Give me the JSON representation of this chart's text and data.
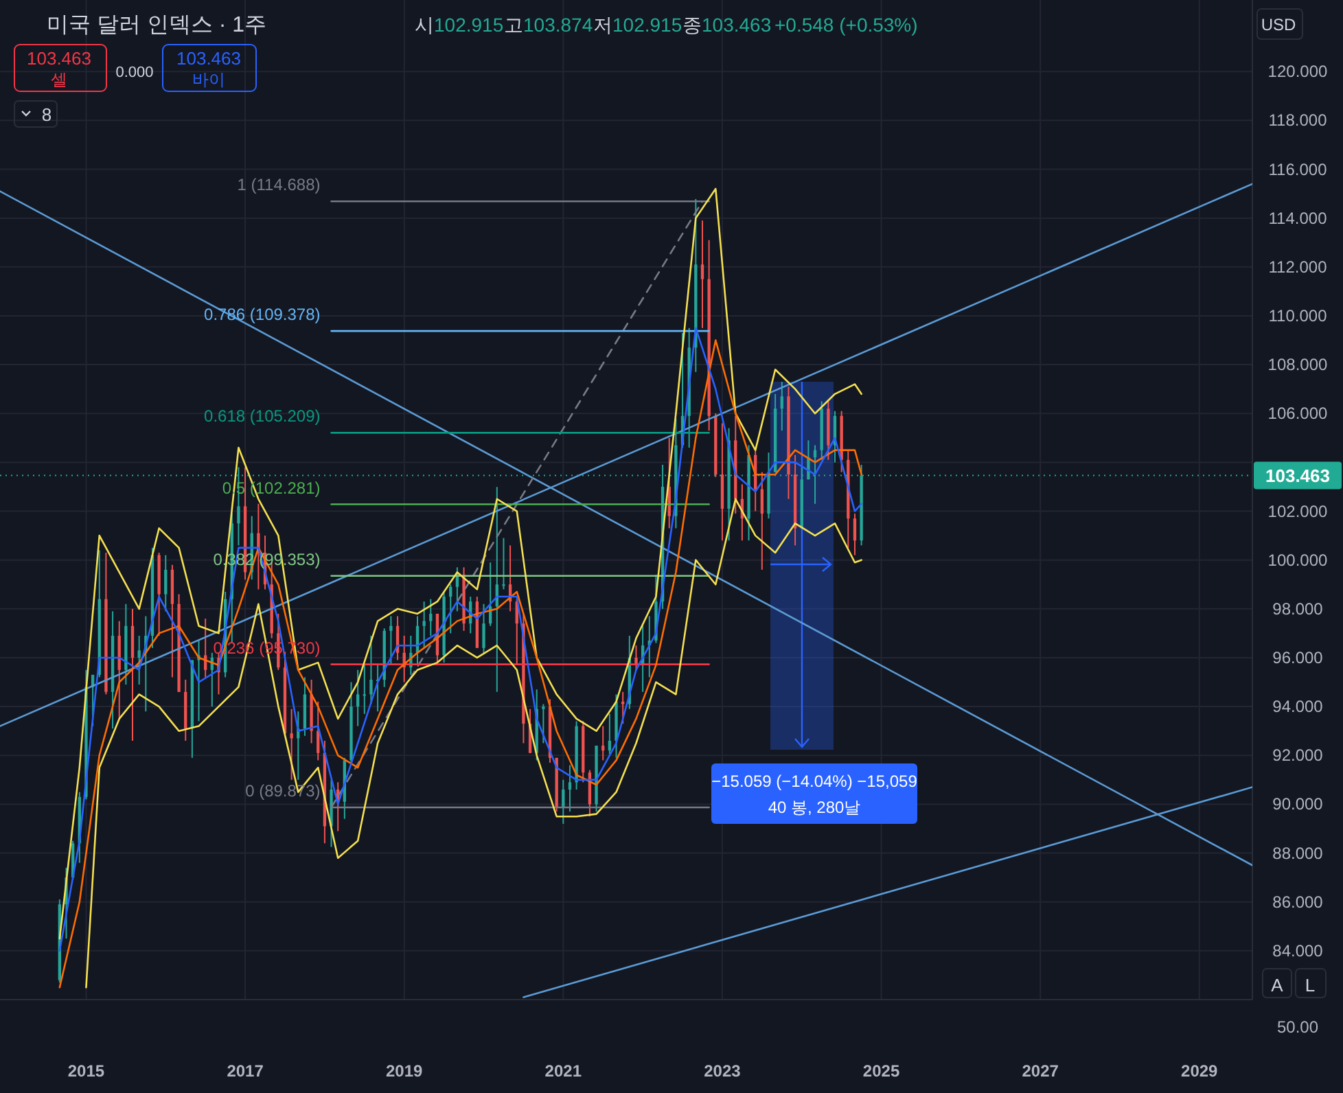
{
  "chart_data": {
    "type": "candlestick",
    "title": "미국 달러 인덱스 · 1주",
    "xlim": [
      "2013-12",
      "2029-09"
    ],
    "ylim": [
      82.0,
      122.93
    ],
    "xticks": [
      "2015",
      "2017",
      "2019",
      "2021",
      "2023",
      "2025",
      "2027",
      "2029"
    ],
    "yticks": [
      {
        "value": 84,
        "label": "84.000"
      },
      {
        "value": 86,
        "label": "86.000"
      },
      {
        "value": 88,
        "label": "88.000"
      },
      {
        "value": 90,
        "label": "90.000"
      },
      {
        "value": 92,
        "label": "92.000"
      },
      {
        "value": 94,
        "label": "94.000"
      },
      {
        "value": 96,
        "label": "96.000"
      },
      {
        "value": 98,
        "label": "98.000"
      },
      {
        "value": 100,
        "label": "100.000"
      },
      {
        "value": 102,
        "label": "102.000"
      },
      {
        "value": 104,
        "label": null
      },
      {
        "value": 106,
        "label": "106.000"
      },
      {
        "value": 108,
        "label": "108.000"
      },
      {
        "value": 110,
        "label": "110.000"
      },
      {
        "value": 112,
        "label": "112.000"
      },
      {
        "value": 114,
        "label": "114.000"
      },
      {
        "value": 116,
        "label": "116.000"
      },
      {
        "value": 118,
        "label": "118.000"
      },
      {
        "value": 120,
        "label": "120.000"
      }
    ],
    "grid": true,
    "x": [
      "2014-09",
      "2014-10",
      "2014-11",
      "2014-12",
      "2015-01",
      "2015-02",
      "2015-03",
      "2015-04",
      "2015-05",
      "2015-06",
      "2015-07",
      "2015-08",
      "2015-09",
      "2015-10",
      "2015-11",
      "2015-12",
      "2016-01",
      "2016-02",
      "2016-03",
      "2016-04",
      "2016-05",
      "2016-06",
      "2016-07",
      "2016-08",
      "2016-09",
      "2016-10",
      "2016-11",
      "2016-12",
      "2017-01",
      "2017-02",
      "2017-03",
      "2017-04",
      "2017-05",
      "2017-06",
      "2017-07",
      "2017-08",
      "2017-09",
      "2017-10",
      "2017-11",
      "2017-12",
      "2018-01",
      "2018-02",
      "2018-03",
      "2018-04",
      "2018-05",
      "2018-06",
      "2018-07",
      "2018-08",
      "2018-09",
      "2018-10",
      "2018-11",
      "2018-12",
      "2019-01",
      "2019-02",
      "2019-03",
      "2019-04",
      "2019-05",
      "2019-06",
      "2019-07",
      "2019-08",
      "2019-09",
      "2019-10",
      "2019-11",
      "2019-12",
      "2020-01",
      "2020-02",
      "2020-03",
      "2020-04",
      "2020-05",
      "2020-06",
      "2020-07",
      "2020-08",
      "2020-09",
      "2020-10",
      "2020-11",
      "2020-12",
      "2021-01",
      "2021-02",
      "2021-03",
      "2021-04",
      "2021-05",
      "2021-06",
      "2021-07",
      "2021-08",
      "2021-09",
      "2021-10",
      "2021-11",
      "2021-12",
      "2022-01",
      "2022-02",
      "2022-03",
      "2022-04",
      "2022-05",
      "2022-06",
      "2022-07",
      "2022-08",
      "2022-09",
      "2022-10",
      "2022-11",
      "2022-12",
      "2023-01",
      "2023-02",
      "2023-03",
      "2023-04",
      "2023-05",
      "2023-06",
      "2023-07",
      "2023-08",
      "2023-09",
      "2023-10",
      "2023-11",
      "2023-12",
      "2024-01",
      "2024-02",
      "2024-03",
      "2024-04",
      "2024-05",
      "2024-06",
      "2024-07",
      "2024-08",
      "2024-09",
      "2024-10"
    ],
    "ohlc": [
      [
        82.8,
        86.1,
        82.7,
        85.9
      ],
      [
        85.9,
        87.4,
        84.5,
        87.0
      ],
      [
        87.0,
        88.5,
        86.9,
        88.4
      ],
      [
        88.4,
        90.5,
        87.6,
        90.3
      ],
      [
        90.3,
        95.5,
        90.2,
        94.8
      ],
      [
        94.8,
        95.3,
        93.2,
        95.3
      ],
      [
        95.3,
        100.4,
        95.2,
        98.4
      ],
      [
        98.4,
        100.3,
        94.5,
        94.6
      ],
      [
        94.6,
        97.9,
        93.1,
        96.9
      ],
      [
        96.9,
        97.5,
        93.5,
        95.5
      ],
      [
        95.5,
        98.2,
        94.9,
        97.3
      ],
      [
        97.3,
        98.0,
        92.6,
        96.0
      ],
      [
        96.0,
        96.9,
        94.9,
        96.3
      ],
      [
        96.3,
        97.7,
        93.8,
        96.9
      ],
      [
        96.9,
        100.5,
        96.4,
        100.2
      ],
      [
        100.2,
        100.3,
        96.9,
        98.6
      ],
      [
        98.6,
        100.2,
        97.9,
        99.6
      ],
      [
        99.6,
        99.8,
        95.2,
        98.2
      ],
      [
        98.2,
        98.6,
        94.6,
        94.6
      ],
      [
        94.6,
        95.1,
        92.6,
        93.1
      ],
      [
        93.1,
        95.9,
        91.9,
        95.9
      ],
      [
        95.9,
        96.7,
        93.4,
        96.1
      ],
      [
        96.1,
        97.6,
        95.2,
        95.5
      ],
      [
        95.5,
        96.2,
        94.0,
        96.0
      ],
      [
        96.0,
        96.2,
        94.5,
        95.4
      ],
      [
        95.4,
        98.7,
        95.2,
        98.4
      ],
      [
        98.4,
        101.9,
        96.6,
        101.5
      ],
      [
        101.5,
        103.8,
        100.6,
        102.2
      ],
      [
        102.2,
        103.8,
        99.2,
        99.5
      ],
      [
        99.5,
        101.8,
        99.2,
        101.1
      ],
      [
        101.1,
        102.3,
        98.8,
        100.3
      ],
      [
        100.3,
        101.0,
        98.8,
        99.0
      ],
      [
        99.0,
        99.9,
        96.8,
        97.0
      ],
      [
        97.0,
        97.8,
        95.5,
        95.6
      ],
      [
        95.6,
        96.2,
        92.8,
        92.9
      ],
      [
        92.9,
        93.9,
        91.0,
        92.7
      ],
      [
        92.7,
        93.8,
        91.0,
        93.1
      ],
      [
        93.1,
        95.2,
        92.8,
        94.5
      ],
      [
        94.5,
        95.1,
        92.5,
        93.0
      ],
      [
        93.0,
        94.2,
        91.8,
        92.1
      ],
      [
        92.1,
        92.6,
        88.4,
        89.1
      ],
      [
        89.1,
        91.0,
        88.25,
        90.6
      ],
      [
        90.6,
        90.9,
        88.9,
        90.1
      ],
      [
        90.1,
        91.9,
        89.4,
        91.8
      ],
      [
        91.8,
        95.0,
        91.7,
        94.0
      ],
      [
        94.0,
        95.5,
        93.2,
        94.5
      ],
      [
        94.5,
        95.7,
        93.7,
        94.5
      ],
      [
        94.5,
        96.9,
        94.1,
        95.1
      ],
      [
        95.1,
        95.7,
        93.8,
        95.1
      ],
      [
        95.1,
        97.2,
        94.8,
        97.1
      ],
      [
        97.1,
        97.7,
        95.7,
        97.3
      ],
      [
        97.3,
        97.7,
        95.9,
        96.2
      ],
      [
        96.2,
        96.9,
        95.0,
        95.6
      ],
      [
        95.6,
        96.9,
        95.3,
        96.2
      ],
      [
        96.2,
        97.7,
        95.7,
        97.3
      ],
      [
        97.3,
        98.3,
        96.4,
        97.5
      ],
      [
        97.5,
        98.4,
        96.9,
        97.8
      ],
      [
        97.8,
        97.8,
        95.8,
        96.1
      ],
      [
        96.1,
        98.7,
        95.8,
        98.5
      ],
      [
        98.5,
        99.0,
        97.0,
        98.9
      ],
      [
        98.9,
        99.7,
        97.9,
        99.4
      ],
      [
        99.4,
        99.7,
        97.1,
        97.4
      ],
      [
        97.4,
        98.5,
        97.0,
        98.3
      ],
      [
        98.3,
        98.5,
        96.4,
        96.4
      ],
      [
        96.4,
        98.2,
        96.2,
        97.4
      ],
      [
        97.4,
        99.9,
        97.3,
        98.1
      ],
      [
        98.1,
        102.99,
        94.6,
        99.0
      ],
      [
        99.0,
        100.9,
        98.8,
        99.0
      ],
      [
        99.0,
        100.6,
        97.9,
        98.3
      ],
      [
        98.3,
        98.4,
        95.7,
        97.4
      ],
      [
        97.4,
        97.8,
        92.5,
        93.3
      ],
      [
        93.3,
        93.9,
        92.1,
        92.1
      ],
      [
        92.1,
        94.7,
        91.8,
        93.9
      ],
      [
        93.9,
        94.1,
        92.5,
        94.0
      ],
      [
        94.0,
        94.3,
        91.7,
        91.9
      ],
      [
        91.9,
        91.9,
        89.7,
        89.9
      ],
      [
        89.9,
        91.0,
        89.2,
        90.6
      ],
      [
        90.6,
        91.6,
        89.7,
        90.9
      ],
      [
        90.9,
        93.4,
        90.6,
        93.2
      ],
      [
        93.2,
        93.4,
        90.9,
        91.3
      ],
      [
        91.3,
        91.4,
        89.5,
        90.0
      ],
      [
        90.0,
        92.4,
        89.7,
        92.4
      ],
      [
        92.4,
        93.2,
        91.8,
        92.2
      ],
      [
        92.2,
        93.7,
        92.0,
        92.6
      ],
      [
        92.6,
        94.5,
        91.9,
        94.2
      ],
      [
        94.2,
        94.6,
        93.3,
        94.1
      ],
      [
        94.1,
        96.9,
        93.9,
        96.0
      ],
      [
        96.0,
        96.5,
        95.5,
        95.7
      ],
      [
        95.7,
        97.4,
        94.6,
        96.5
      ],
      [
        96.5,
        97.7,
        95.2,
        96.7
      ],
      [
        96.7,
        99.4,
        96.6,
        98.3
      ],
      [
        98.3,
        103.9,
        98.0,
        103.0
      ],
      [
        103.0,
        105.0,
        101.3,
        101.8
      ],
      [
        101.8,
        105.8,
        101.3,
        104.7
      ],
      [
        104.7,
        109.3,
        104.6,
        105.9
      ],
      [
        105.9,
        109.5,
        104.6,
        108.7
      ],
      [
        108.7,
        114.78,
        107.7,
        112.1
      ],
      [
        112.1,
        113.9,
        109.5,
        111.5
      ],
      [
        111.5,
        113.1,
        105.3,
        105.9
      ],
      [
        105.9,
        106.0,
        103.4,
        103.5
      ],
      [
        103.5,
        105.6,
        100.8,
        102.1
      ],
      [
        102.1,
        105.4,
        100.8,
        104.9
      ],
      [
        104.9,
        105.9,
        101.9,
        102.5
      ],
      [
        102.5,
        103.1,
        100.8,
        101.7
      ],
      [
        101.7,
        104.7,
        100.8,
        104.3
      ],
      [
        104.3,
        104.5,
        102.0,
        102.9
      ],
      [
        102.9,
        103.6,
        99.6,
        101.9
      ],
      [
        101.9,
        104.4,
        101.7,
        103.6
      ],
      [
        103.6,
        106.8,
        103.6,
        106.2
      ],
      [
        106.2,
        107.3,
        105.3,
        106.7
      ],
      [
        106.7,
        107.1,
        102.5,
        103.5
      ],
      [
        103.5,
        104.3,
        100.6,
        101.3
      ],
      [
        101.3,
        103.8,
        101.3,
        103.3
      ],
      [
        103.3,
        104.9,
        103.3,
        104.2
      ],
      [
        104.2,
        104.7,
        102.3,
        104.5
      ],
      [
        104.5,
        106.5,
        104.1,
        106.2
      ],
      [
        106.2,
        106.5,
        104.1,
        104.7
      ],
      [
        104.7,
        106.1,
        104.0,
        105.9
      ],
      [
        105.9,
        106.1,
        103.6,
        104.1
      ],
      [
        104.1,
        104.5,
        100.5,
        101.7
      ],
      [
        101.7,
        101.9,
        100.2,
        100.8
      ],
      [
        100.8,
        103.9,
        100.6,
        103.463
      ]
    ],
    "series": [
      {
        "type": "line",
        "color": "#5b9bd5",
        "x": [
          "2013-12",
          "2029-09"
        ],
        "values": [
          115.1,
          87.5
        ]
      },
      {
        "type": "line",
        "color": "#5b9bd5",
        "x": [
          "2013-12",
          "2029-09"
        ],
        "values": [
          93.2,
          115.4
        ]
      },
      {
        "type": "line",
        "color": "#5b9bd5",
        "x": [
          "2020-07",
          "2029-09"
        ],
        "values": [
          82.1,
          90.7
        ]
      },
      {
        "type": "line",
        "color": "#787b86",
        "line_style": "dashed",
        "x": [
          "2018-02",
          "2022-10"
        ],
        "values": [
          89.873,
          114.688
        ]
      },
      {
        "type": "line",
        "name": "1 (114.688)",
        "color": "#787b86",
        "x": [
          "2018-02",
          "2022-11"
        ],
        "values": [
          114.688,
          114.688
        ]
      },
      {
        "type": "line",
        "name": "0.786 (109.378)",
        "color": "#64b5f6",
        "x": [
          "2018-02",
          "2022-11"
        ],
        "values": [
          109.378,
          109.378
        ]
      },
      {
        "type": "line",
        "name": "0.618 (105.209)",
        "color": "#089981",
        "x": [
          "2018-02",
          "2022-11"
        ],
        "values": [
          105.209,
          105.209
        ]
      },
      {
        "type": "line",
        "name": "0.5 (102.281)",
        "color": "#4caf50",
        "x": [
          "2018-02",
          "2022-11"
        ],
        "values": [
          102.281,
          102.281
        ]
      },
      {
        "type": "line",
        "name": "0.382 (99.353)",
        "color": "#81c784",
        "x": [
          "2018-02",
          "2022-11"
        ],
        "values": [
          99.353,
          99.353
        ]
      },
      {
        "type": "line",
        "name": "0.236 (95.730)",
        "color": "#f23645",
        "x": [
          "2018-02",
          "2022-11"
        ],
        "values": [
          95.73,
          95.73
        ]
      },
      {
        "type": "line",
        "name": "0 (89.873)",
        "color": "#787b86",
        "x": [
          "2018-02",
          "2022-11"
        ],
        "values": [
          89.873,
          89.873
        ]
      },
      {
        "type": "line",
        "color": "#f5e050",
        "x": [
          "2014-09",
          "2014-12",
          "2015-03",
          "2015-06",
          "2015-09",
          "2015-12",
          "2016-03",
          "2016-06",
          "2016-09",
          "2016-12",
          "2017-03",
          "2017-06",
          "2017-09",
          "2017-12",
          "2018-03",
          "2018-06",
          "2018-09",
          "2018-12",
          "2019-03",
          "2019-06",
          "2019-09",
          "2019-12",
          "2020-03",
          "2020-06",
          "2020-09",
          "2020-12",
          "2021-03",
          "2021-06",
          "2021-09",
          "2021-12",
          "2022-03",
          "2022-06",
          "2022-09",
          "2022-12",
          "2023-03",
          "2023-06",
          "2023-09",
          "2023-12",
          "2024-03",
          "2024-06",
          "2024-09",
          "2024-10"
        ],
        "values": [
          84.5,
          91.5,
          101.0,
          99.5,
          98.0,
          101.3,
          100.5,
          97.3,
          97.0,
          104.6,
          102.5,
          101.0,
          95.5,
          95.8,
          93.5,
          95.0,
          97.5,
          98.0,
          97.8,
          98.3,
          99.5,
          98.8,
          102.5,
          102.0,
          96.0,
          94.5,
          93.5,
          93.0,
          94.2,
          96.8,
          98.5,
          106.0,
          114.0,
          115.2,
          106.0,
          104.5,
          107.8,
          107.0,
          106.0,
          106.8,
          107.2,
          106.8
        ]
      },
      {
        "type": "line",
        "color": "#f5e050",
        "x": [
          "2015-01",
          "2015-03",
          "2015-06",
          "2015-09",
          "2015-12",
          "2016-03",
          "2016-06",
          "2016-09",
          "2016-12",
          "2017-03",
          "2017-06",
          "2017-09",
          "2017-12",
          "2018-03",
          "2018-06",
          "2018-09",
          "2018-12",
          "2019-03",
          "2019-06",
          "2019-09",
          "2019-12",
          "2020-03",
          "2020-06",
          "2020-09",
          "2020-12",
          "2021-03",
          "2021-06",
          "2021-09",
          "2021-12",
          "2022-03",
          "2022-06",
          "2022-09",
          "2022-12",
          "2023-03",
          "2023-06",
          "2023-09",
          "2023-12",
          "2024-03",
          "2024-06",
          "2024-09",
          "2024-10"
        ],
        "values": [
          82.5,
          91.5,
          93.5,
          94.5,
          94.0,
          93.0,
          93.2,
          94.0,
          94.8,
          98.2,
          94.0,
          90.5,
          91.5,
          87.8,
          88.5,
          92.5,
          94.5,
          95.5,
          95.8,
          96.5,
          96.0,
          96.5,
          95.5,
          92.0,
          89.5,
          89.5,
          89.6,
          90.5,
          92.5,
          95.0,
          94.5,
          100.0,
          99.0,
          102.5,
          101.0,
          100.3,
          101.5,
          101.0,
          101.5,
          99.9,
          100.0
        ]
      },
      {
        "type": "line",
        "color": "#ff6d00",
        "x": [
          "2014-09",
          "2014-12",
          "2015-03",
          "2015-06",
          "2015-09",
          "2015-12",
          "2016-03",
          "2016-06",
          "2016-09",
          "2016-12",
          "2017-03",
          "2017-06",
          "2017-09",
          "2017-12",
          "2018-03",
          "2018-06",
          "2018-09",
          "2018-12",
          "2019-03",
          "2019-06",
          "2019-09",
          "2019-12",
          "2020-03",
          "2020-06",
          "2020-09",
          "2020-12",
          "2021-03",
          "2021-06",
          "2021-09",
          "2021-12",
          "2022-03",
          "2022-06",
          "2022-09",
          "2022-12",
          "2023-03",
          "2023-06",
          "2023-09",
          "2023-12",
          "2024-03",
          "2024-06",
          "2024-09",
          "2024-10"
        ],
        "values": [
          82.5,
          86.0,
          92.0,
          95.0,
          95.8,
          97.0,
          97.3,
          96.0,
          95.7,
          98.0,
          100.5,
          99.0,
          95.5,
          94.0,
          92.0,
          91.5,
          93.5,
          95.5,
          96.2,
          96.8,
          97.5,
          97.8,
          98.0,
          98.7,
          96.0,
          93.0,
          91.2,
          90.8,
          91.8,
          93.5,
          95.7,
          99.5,
          105.0,
          109.0,
          106.0,
          103.5,
          103.5,
          104.5,
          104.0,
          104.5,
          104.5,
          103.5
        ]
      },
      {
        "type": "line",
        "color": "#2962ff",
        "x": [
          "2014-09",
          "2014-12",
          "2015-03",
          "2015-06",
          "2015-09",
          "2015-12",
          "2016-03",
          "2016-06",
          "2016-09",
          "2016-12",
          "2017-03",
          "2017-06",
          "2017-09",
          "2017-12",
          "2018-03",
          "2018-06",
          "2018-09",
          "2018-12",
          "2019-03",
          "2019-06",
          "2019-09",
          "2019-12",
          "2020-03",
          "2020-06",
          "2020-09",
          "2020-12",
          "2021-03",
          "2021-06",
          "2021-09",
          "2021-12",
          "2022-03",
          "2022-06",
          "2022-09",
          "2022-12",
          "2023-03",
          "2023-06",
          "2023-09",
          "2023-12",
          "2024-03",
          "2024-06",
          "2024-09",
          "2024-10"
        ],
        "values": [
          84.0,
          88.5,
          96.0,
          96.0,
          95.5,
          98.5,
          97.0,
          95.0,
          95.5,
          100.5,
          100.5,
          97.5,
          93.0,
          93.2,
          90.0,
          92.5,
          95.0,
          96.5,
          96.5,
          97.0,
          98.3,
          97.6,
          98.5,
          98.5,
          93.5,
          91.5,
          91.0,
          91.0,
          92.5,
          95.5,
          97.0,
          102.5,
          109.5,
          107.0,
          103.5,
          102.8,
          104.0,
          104.0,
          103.5,
          105.0,
          102.0,
          102.3
        ]
      }
    ],
    "ref_lines": [
      {
        "axis": "y",
        "value": 103.463,
        "label": "103.463",
        "color": "#22ab94",
        "line_style": "dotted"
      }
    ],
    "annotations": [
      "시",
      "102.915",
      "고",
      "103.874",
      "저",
      "102.915",
      "종",
      "103.463",
      "+0.548 (+0.53%)",
      "103.463",
      "셀",
      "0.000",
      "103.463",
      "바이",
      "8",
      "USD",
      "A",
      "L",
      "50.00",
      "−15.059 (−14.04%) −15,059",
      "40 봉, 280날"
    ]
  }
}
